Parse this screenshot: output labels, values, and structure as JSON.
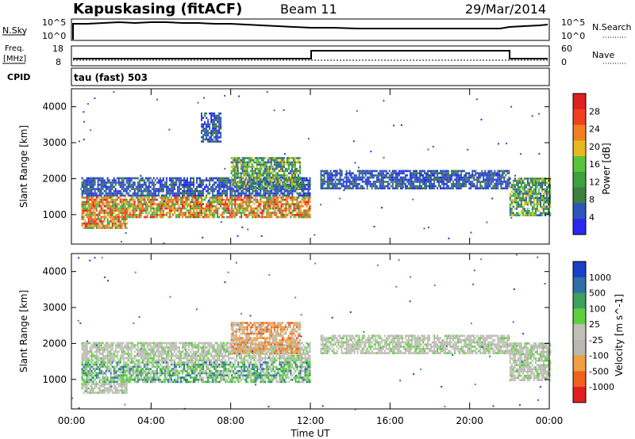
{
  "header": {
    "station": "Kapuskasing (fitACF)",
    "beam": "Beam 11",
    "date": "29/Mar/2014"
  },
  "ancillary": {
    "nsky_label": "N.Sky",
    "nsky_ticks": [
      "10^5",
      "10^0"
    ],
    "nsearch_label": "N.Search",
    "nsearch_ticks": [
      "10^5",
      "10^0"
    ],
    "freq_label": "Freq.",
    "freq_unit": "[MHz]",
    "freq_ticks": [
      "18",
      "8"
    ],
    "nave_label": "Nave",
    "nave_ticks": [
      "60",
      "0"
    ],
    "cpid_label": "CPID",
    "cpid_value": "tau (fast) 503"
  },
  "x_axis": {
    "label": "Time UT",
    "ticks": [
      "00:00",
      "04:00",
      "08:00",
      "12:00",
      "16:00",
      "20:00",
      "00:00"
    ]
  },
  "chart_data": [
    {
      "type": "heatmap",
      "panel": "power",
      "ylabel": "Slant Range [km]",
      "yticks": [
        "4000",
        "3000",
        "2000",
        "1000"
      ],
      "ylim": [
        180,
        4500
      ],
      "xlim": [
        0,
        24
      ],
      "colorbar": {
        "label": "Power [dB]",
        "ticks": [
          "28",
          "24",
          "20",
          "16",
          "12",
          "8",
          "4"
        ],
        "colors": [
          "#2a28f0",
          "#2d55b8",
          "#3f7f3f",
          "#3fa040",
          "#58c43a",
          "#e8b820",
          "#f08020",
          "#f04020",
          "#e02020"
        ]
      },
      "regions": [
        {
          "t0": 0.5,
          "t1": 12.0,
          "r0": 1500,
          "r1": 2000,
          "level": "low"
        },
        {
          "t0": 0.5,
          "t1": 12.0,
          "r0": 900,
          "r1": 1500,
          "level": "high"
        },
        {
          "t0": 0.5,
          "t1": 2.8,
          "r0": 600,
          "r1": 900,
          "level": "high"
        },
        {
          "t0": 8.0,
          "t1": 11.5,
          "r0": 1700,
          "r1": 2600,
          "level": "mid"
        },
        {
          "t0": 12.5,
          "t1": 22.0,
          "r0": 1700,
          "r1": 2200,
          "level": "low"
        },
        {
          "t0": 22.0,
          "t1": 24.0,
          "r0": 950,
          "r1": 2000,
          "level": "mid"
        },
        {
          "t0": 6.5,
          "t1": 7.5,
          "r0": 3000,
          "r1": 3800,
          "level": "low"
        }
      ]
    },
    {
      "type": "heatmap",
      "panel": "velocity",
      "ylabel": "Slant Range [km]",
      "yticks": [
        "4000",
        "3000",
        "2000",
        "1000"
      ],
      "ylim": [
        180,
        4500
      ],
      "xlim": [
        0,
        24
      ],
      "colorbar": {
        "label": "Velocity [m s^-1]",
        "ticks": [
          "1000",
          "500",
          "100",
          "25",
          "-25",
          "-100",
          "-500",
          "-1000"
        ],
        "colors": [
          "#1a3fc8",
          "#2f6fa8",
          "#3f9f5f",
          "#5fcf3f",
          "#c0c0b8",
          "#b8b8b0",
          "#f0a040",
          "#f06020",
          "#e02020"
        ]
      },
      "regions": [
        {
          "t0": 0.5,
          "t1": 12.0,
          "r0": 1500,
          "r1": 2000,
          "level": "near-zero"
        },
        {
          "t0": 0.5,
          "t1": 12.0,
          "r0": 900,
          "r1": 1500,
          "level": "positive"
        },
        {
          "t0": 0.5,
          "t1": 2.8,
          "r0": 600,
          "r1": 900,
          "level": "near-zero"
        },
        {
          "t0": 8.0,
          "t1": 11.5,
          "r0": 1700,
          "r1": 2600,
          "level": "negative"
        },
        {
          "t0": 12.5,
          "t1": 22.0,
          "r0": 1700,
          "r1": 2200,
          "level": "near-zero"
        },
        {
          "t0": 22.0,
          "t1": 24.0,
          "r0": 950,
          "r1": 2000,
          "level": "near-zero"
        }
      ]
    }
  ]
}
